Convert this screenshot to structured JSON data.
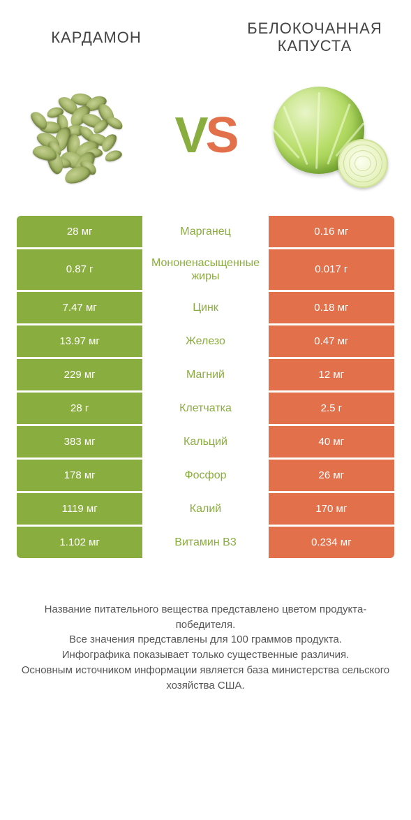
{
  "header": {
    "left_title": "КАРДАМОН",
    "right_title": "БЕЛОКОЧАННАЯ КАПУСТА",
    "vs_v": "V",
    "vs_s": "S"
  },
  "colors": {
    "left_bg": "#8aad3f",
    "right_bg": "#e1704b",
    "mid_text": "#8aad3f",
    "page_bg": "#ffffff"
  },
  "table": {
    "type": "comparison-table",
    "rows": [
      {
        "left": "28 мг",
        "label": "Марганец",
        "right": "0.16 мг"
      },
      {
        "left": "0.87 г",
        "label": "Мононенасыщенные жиры",
        "right": "0.017 г"
      },
      {
        "left": "7.47 мг",
        "label": "Цинк",
        "right": "0.18 мг"
      },
      {
        "left": "13.97 мг",
        "label": "Железо",
        "right": "0.47 мг"
      },
      {
        "left": "229 мг",
        "label": "Магний",
        "right": "12 мг"
      },
      {
        "left": "28 г",
        "label": "Клетчатка",
        "right": "2.5 г"
      },
      {
        "left": "383 мг",
        "label": "Кальций",
        "right": "40 мг"
      },
      {
        "left": "178 мг",
        "label": "Фосфор",
        "right": "26 мг"
      },
      {
        "left": "1119 мг",
        "label": "Калий",
        "right": "170 мг"
      },
      {
        "left": "1.102 мг",
        "label": "Витамин B3",
        "right": "0.234 мг"
      }
    ]
  },
  "footer": {
    "line1": "Название питательного вещества представлено цветом продукта-победителя.",
    "line2": "Все значения представлены для 100 граммов продукта.",
    "line3": "Инфографика показывает только существенные различия.",
    "line4": "Основным источником информации является база министерства сельского хозяйства США."
  }
}
